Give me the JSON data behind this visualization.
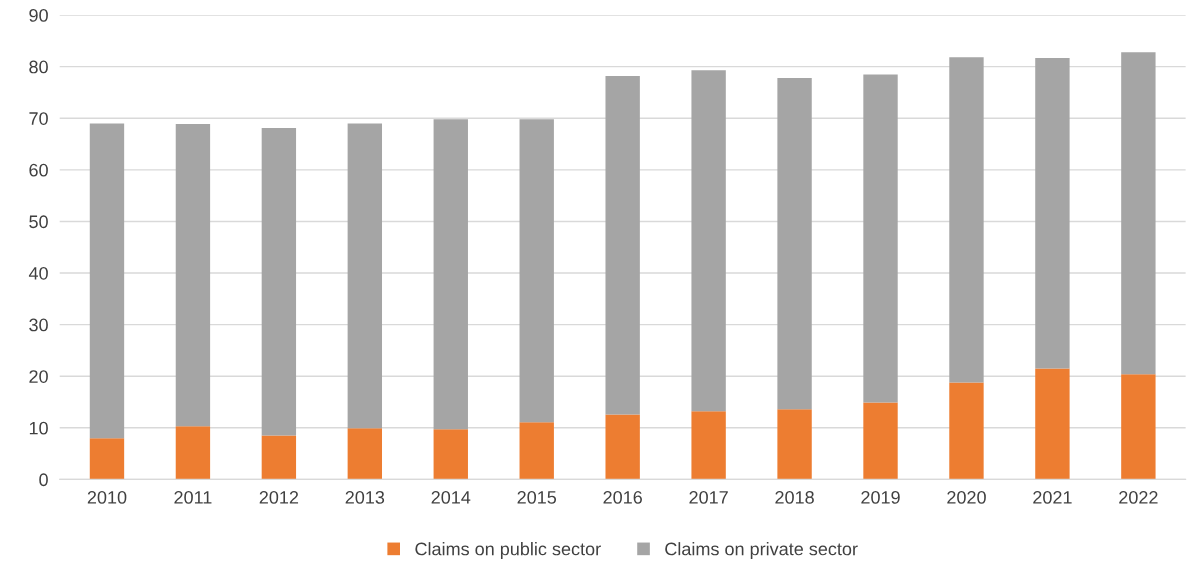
{
  "chart_data": {
    "type": "bar",
    "stacked": true,
    "categories": [
      "2010",
      "2011",
      "2012",
      "2013",
      "2014",
      "2015",
      "2016",
      "2017",
      "2018",
      "2019",
      "2020",
      "2021",
      "2022"
    ],
    "series": [
      {
        "name": "Claims on public sector",
        "color": "#ed7d31",
        "values": [
          8.0,
          10.3,
          8.5,
          9.9,
          9.7,
          11.1,
          12.6,
          13.2,
          13.6,
          14.9,
          18.8,
          21.5,
          20.4
        ]
      },
      {
        "name": "Claims on private sector",
        "color": "#a5a5a5",
        "values": [
          61.0,
          58.6,
          59.6,
          59.1,
          60.1,
          58.7,
          65.6,
          66.1,
          64.2,
          63.6,
          63.0,
          60.2,
          62.4
        ]
      }
    ],
    "ylim": [
      0,
      90
    ],
    "yticks": [
      0,
      10,
      20,
      30,
      40,
      50,
      60,
      70,
      80,
      90
    ],
    "grid": "y",
    "legend": "bottom"
  }
}
